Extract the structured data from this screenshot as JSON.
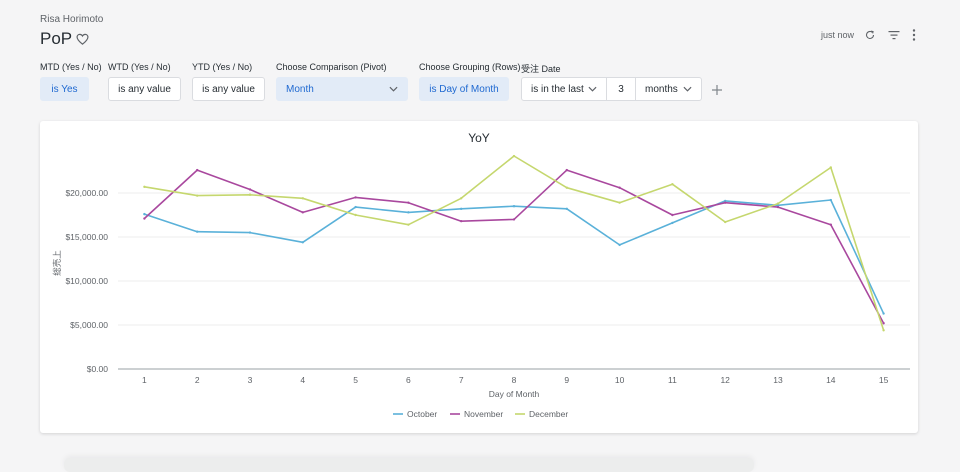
{
  "header": {
    "owner": "Risa Horimoto",
    "title": "PoP",
    "status": "just now"
  },
  "filters": {
    "mtd": {
      "label": "MTD (Yes / No)",
      "value": "is Yes"
    },
    "wtd": {
      "label": "WTD (Yes / No)",
      "value": "is any value"
    },
    "ytd": {
      "label": "YTD (Yes / No)",
      "value": "is any value"
    },
    "pivot": {
      "label": "Choose Comparison (Pivot)",
      "value": "Month"
    },
    "grouping": {
      "label": "Choose Grouping (Rows)",
      "value": "is Day of Month"
    },
    "date": {
      "label": "受注 Date",
      "operator": "is in the last",
      "amount": "3",
      "unit": "months"
    }
  },
  "icons": [
    "heart-icon",
    "refresh-icon",
    "filter-icon",
    "more-vert-icon",
    "chevron-down-icon",
    "plus-icon"
  ],
  "colors": {
    "accent": "#1f69d1",
    "selected_bg": "#e2ebf7"
  },
  "chart_data": {
    "type": "line",
    "title": "YoY",
    "xlabel": "Day of Month",
    "ylabel": "総売上",
    "x": [
      1,
      2,
      3,
      4,
      5,
      6,
      7,
      8,
      9,
      10,
      11,
      12,
      13,
      14,
      15
    ],
    "ylim": [
      0,
      25000
    ],
    "yticks": [
      0,
      5000,
      10000,
      15000,
      20000
    ],
    "ytick_labels": [
      "$0.00",
      "$5,000.00",
      "$10,000.00",
      "$15,000.00",
      "$20,000.00"
    ],
    "grid": true,
    "legend": "bottom-center",
    "series": [
      {
        "name": "October",
        "color": "#5ab1d9",
        "values": [
          17600,
          15600,
          15500,
          14400,
          18400,
          17800,
          18200,
          18500,
          18200,
          14100,
          16600,
          19100,
          18600,
          19200,
          6300
        ]
      },
      {
        "name": "November",
        "color": "#a9489e",
        "values": [
          17100,
          22600,
          20400,
          17800,
          19500,
          18900,
          16800,
          17000,
          22600,
          20600,
          17500,
          18900,
          18400,
          16400,
          5200
        ]
      },
      {
        "name": "December",
        "color": "#c5d76e",
        "values": [
          20700,
          19700,
          19800,
          19400,
          17500,
          16400,
          19400,
          24200,
          20600,
          18900,
          21000,
          16700,
          18800,
          22900,
          4400
        ]
      }
    ]
  }
}
